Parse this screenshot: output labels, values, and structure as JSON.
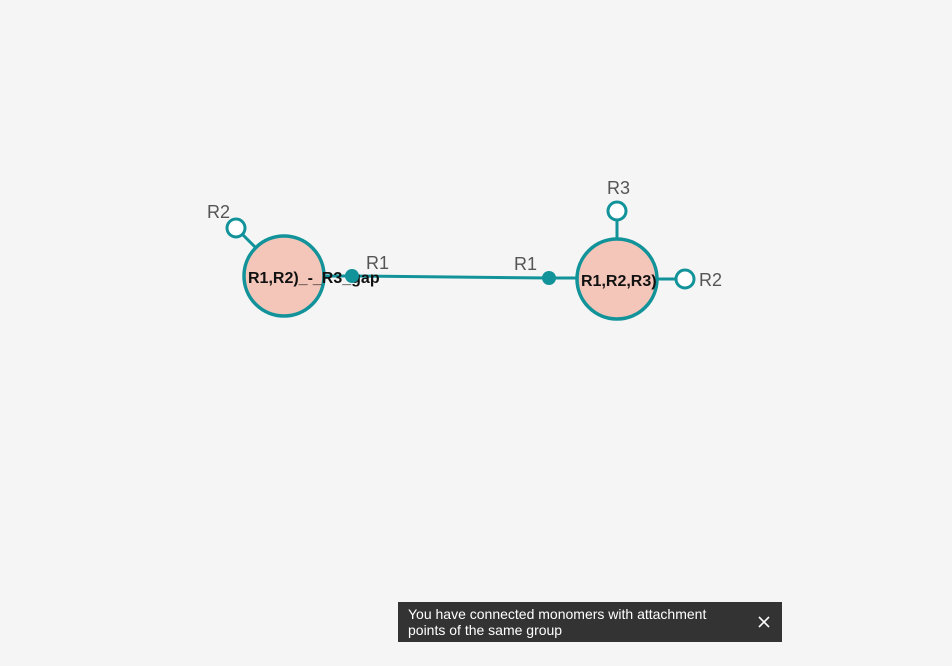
{
  "canvas": {
    "background": "#f5f5f5",
    "accent_color": "#12939a",
    "monomer_fill": "#f3c6b9"
  },
  "monomers": [
    {
      "label": "R1,R2)_-_R3_gap",
      "attachment_points": [
        {
          "name": "R2",
          "state": "free"
        },
        {
          "name": "R1",
          "state": "connected"
        }
      ]
    },
    {
      "label": "R1,R2,R3)",
      "attachment_points": [
        {
          "name": "R3",
          "state": "free"
        },
        {
          "name": "R1",
          "state": "connected"
        },
        {
          "name": "R2",
          "state": "free"
        }
      ]
    }
  ],
  "notification": {
    "message": "You have connected monomers with attachment points of the same group",
    "close_icon": "close-icon"
  }
}
